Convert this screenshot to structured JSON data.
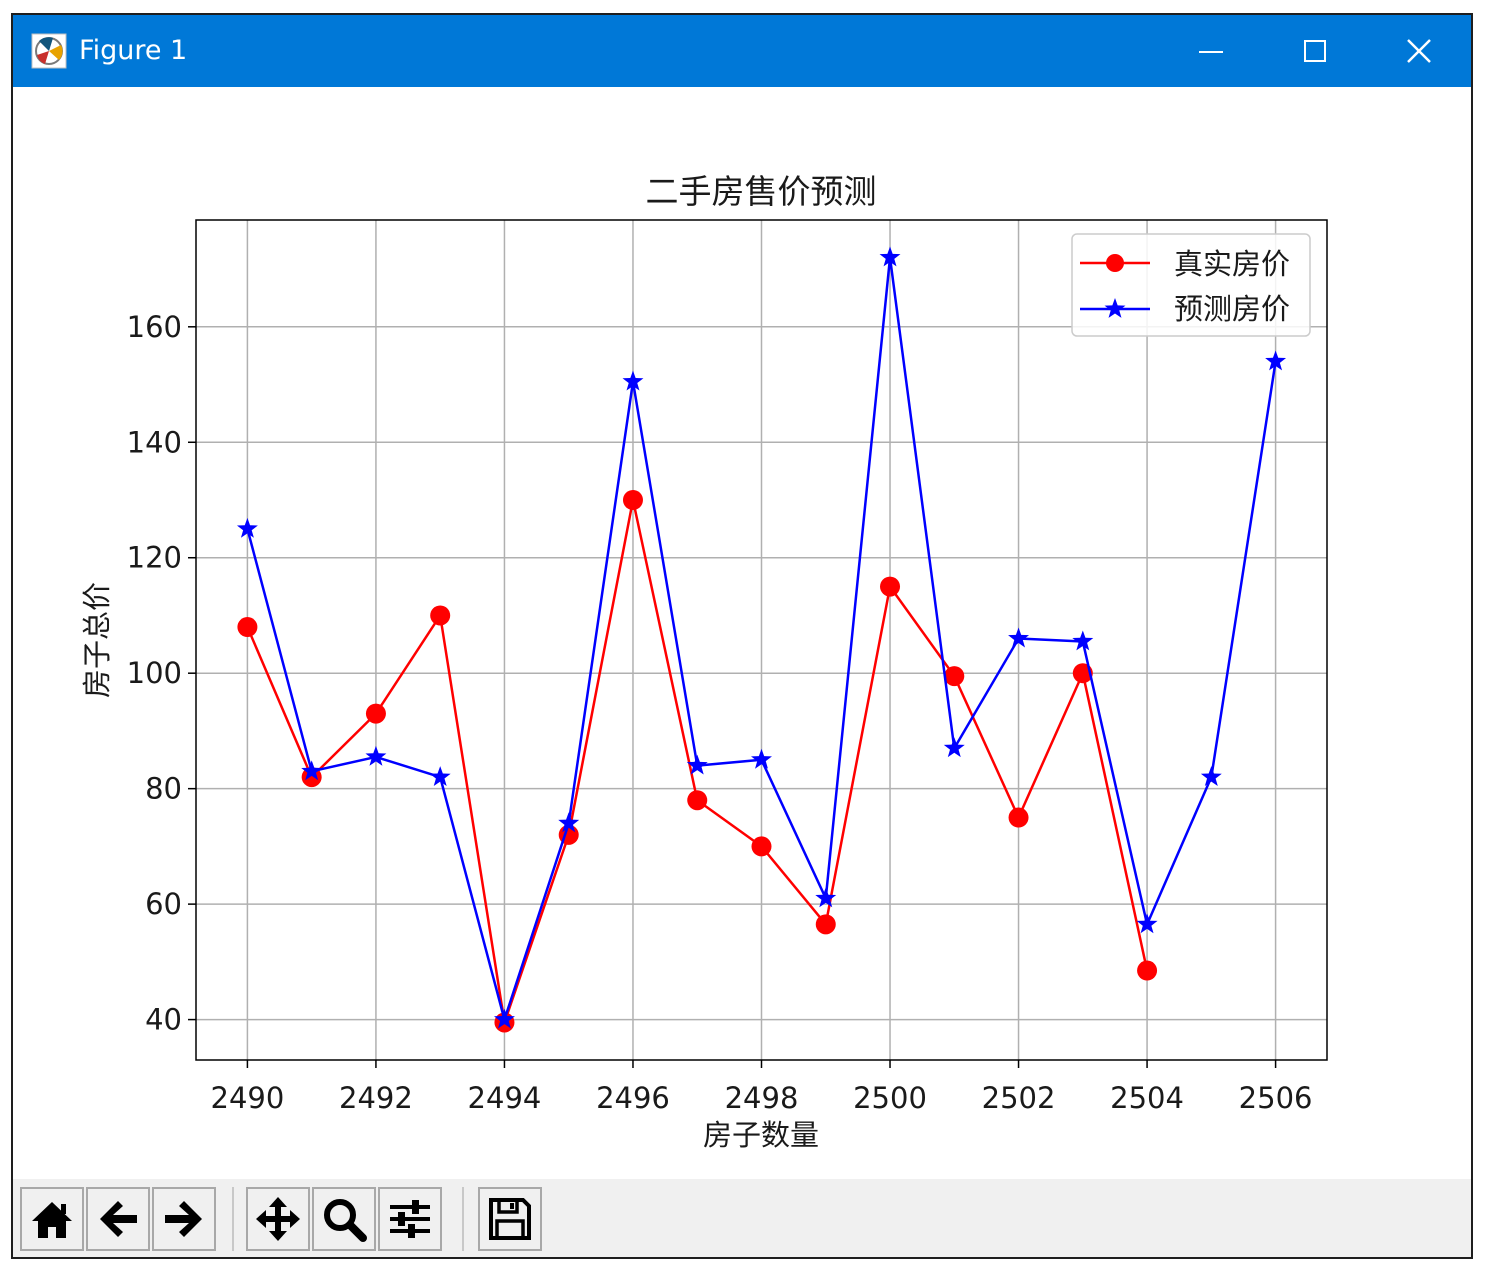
{
  "window": {
    "title": "Figure 1",
    "icons": {
      "app": "matplotlib-icon",
      "minimize": "minimize-icon",
      "maximize": "maximize-icon",
      "close": "close-icon"
    },
    "accent_color": "#0078d7"
  },
  "toolbar": {
    "buttons": [
      {
        "name": "home-button",
        "icon": "home-icon"
      },
      {
        "name": "back-button",
        "icon": "arrow-left-icon"
      },
      {
        "name": "forward-button",
        "icon": "arrow-right-icon"
      },
      {
        "name": "pan-button",
        "icon": "move-icon"
      },
      {
        "name": "zoom-button",
        "icon": "magnifier-icon"
      },
      {
        "name": "configure-subplots-button",
        "icon": "sliders-icon"
      },
      {
        "name": "save-button",
        "icon": "floppy-disk-icon"
      }
    ]
  },
  "chart_data": {
    "type": "line",
    "title": "二手房售价预测",
    "xlabel": "房子数量",
    "ylabel": "房子总价",
    "xlim": [
      2489.2,
      2506.8
    ],
    "ylim": [
      33,
      178.5
    ],
    "xticks": [
      2490,
      2492,
      2494,
      2496,
      2498,
      2500,
      2502,
      2504,
      2506
    ],
    "yticks": [
      40,
      60,
      80,
      100,
      120,
      140,
      160
    ],
    "grid": true,
    "legend": "top-right",
    "series": [
      {
        "name": "真实房价",
        "color": "#ff0000",
        "marker": "circle",
        "x": [
          2490,
          2491,
          2492,
          2493,
          2494,
          2495,
          2496,
          2497,
          2498,
          2499,
          2500,
          2501,
          2502,
          2503,
          2504
        ],
        "y": [
          108,
          82,
          93,
          110,
          39.5,
          72,
          130,
          78,
          70,
          56.5,
          115,
          99.5,
          75,
          100,
          48.5
        ]
      },
      {
        "name": "预测房价",
        "color": "#0000ff",
        "marker": "star",
        "x": [
          2490,
          2491,
          2492,
          2493,
          2494,
          2495,
          2496,
          2497,
          2498,
          2499,
          2500,
          2501,
          2502,
          2503,
          2504,
          2505,
          2506
        ],
        "y": [
          125,
          83,
          85.5,
          82,
          40,
          74,
          150.5,
          84,
          85,
          61,
          172,
          87,
          106,
          105.5,
          56.5,
          82,
          154
        ]
      }
    ]
  }
}
